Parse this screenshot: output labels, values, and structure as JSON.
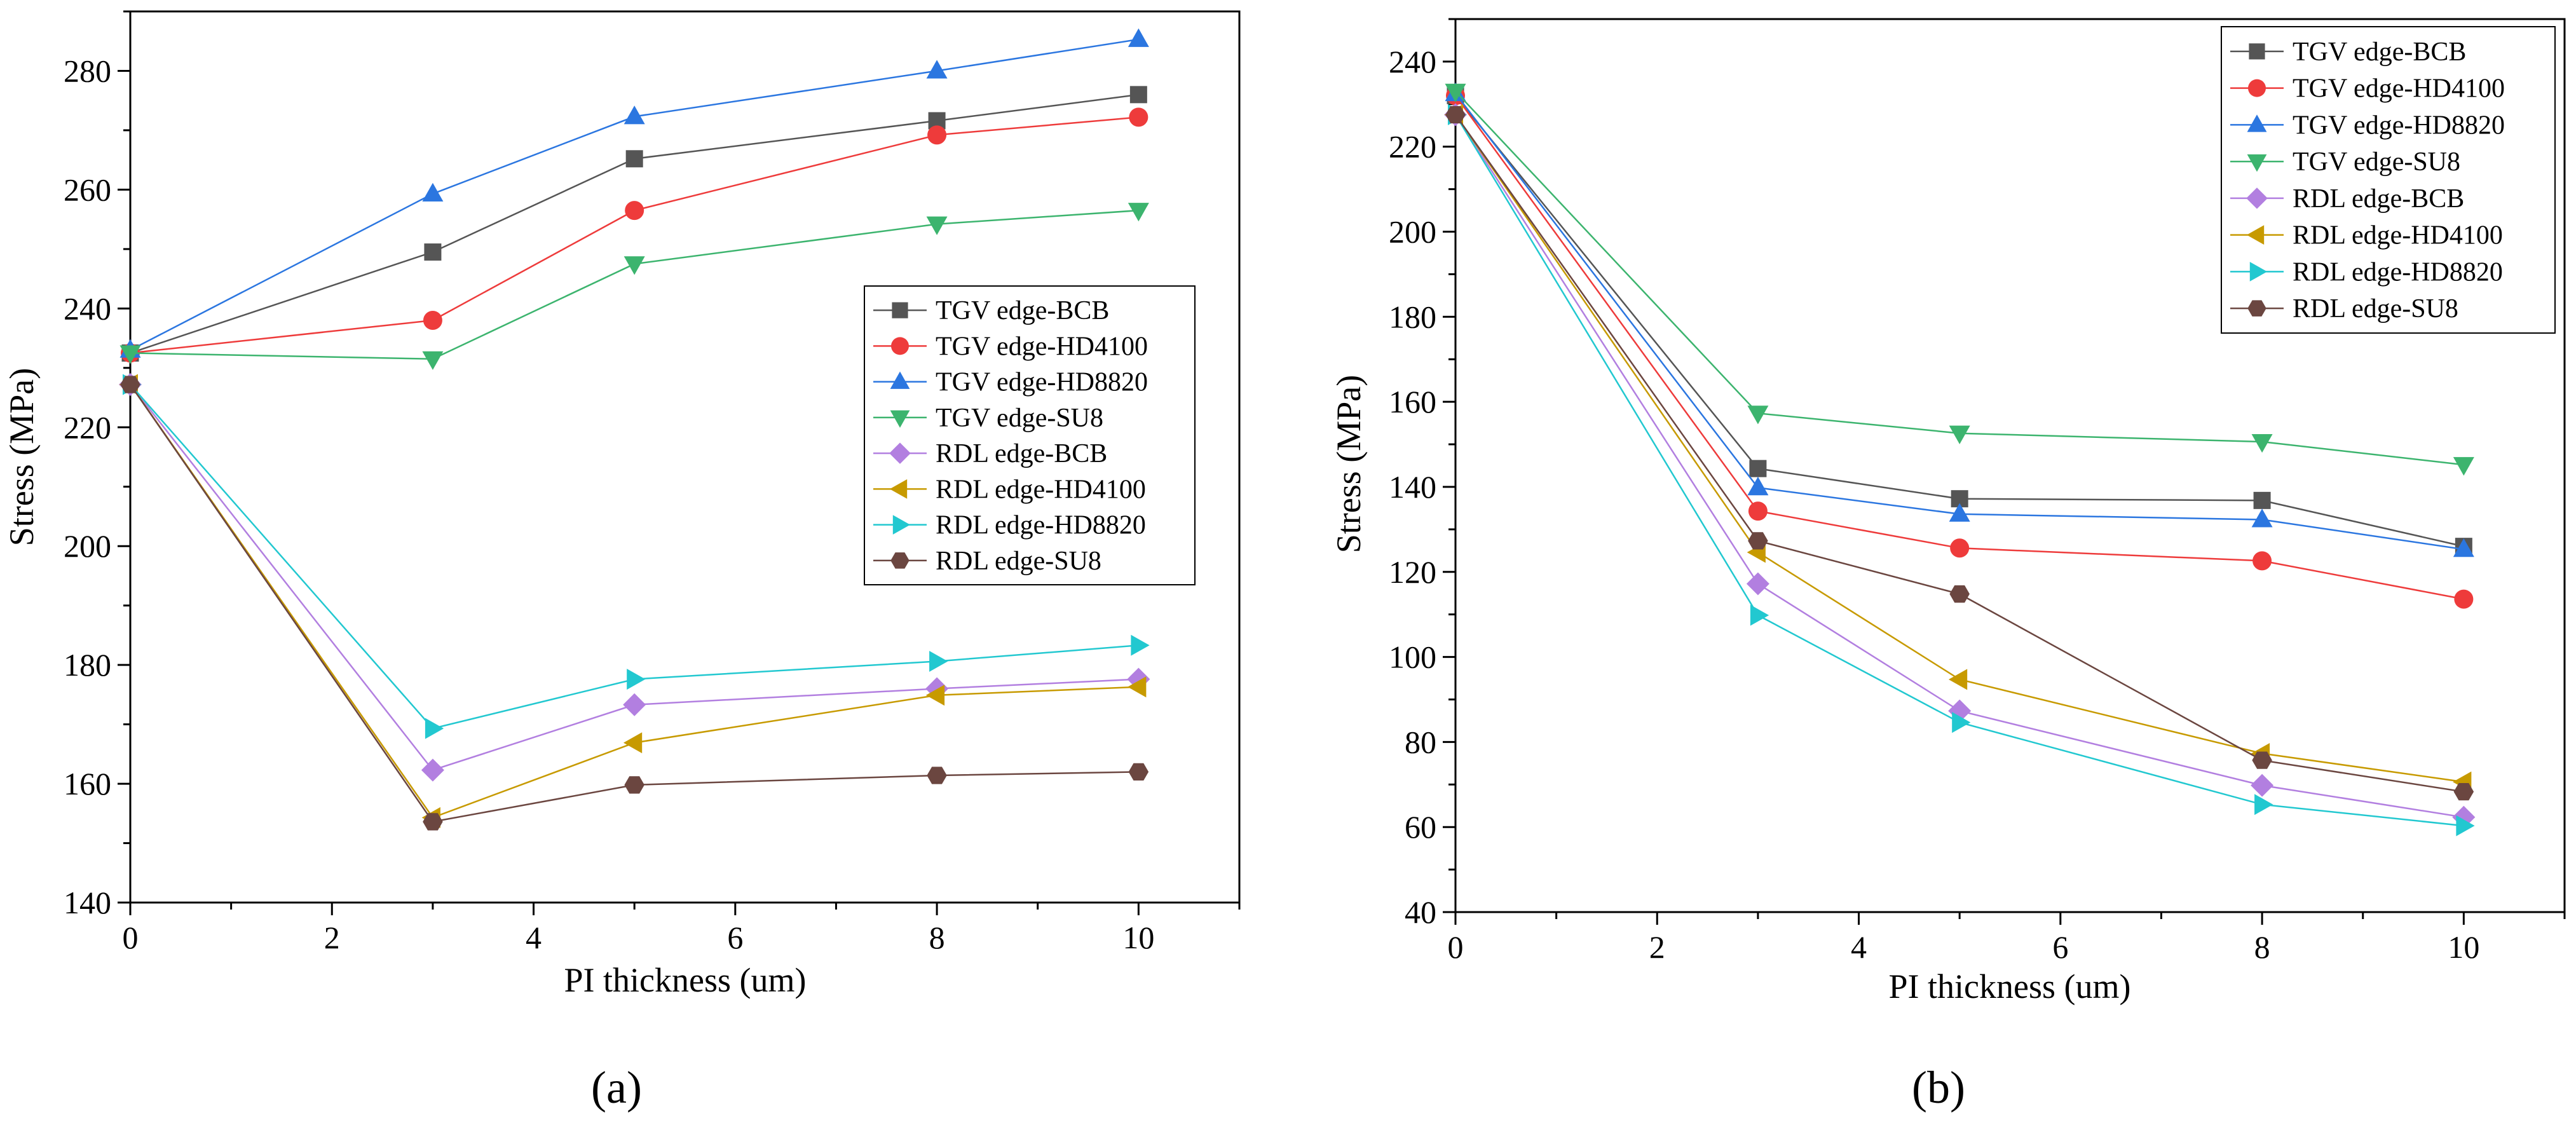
{
  "figure": {
    "captions": [
      "(a)",
      "(b)"
    ]
  },
  "styles": [
    {
      "name": "TGV edge-BCB",
      "color": "#555555",
      "marker": "square"
    },
    {
      "name": "TGV edge-HD4100",
      "color": "#ee3b3b",
      "marker": "circle"
    },
    {
      "name": "TGV edge-HD8820",
      "color": "#2b76e0",
      "marker": "triangle-up"
    },
    {
      "name": "TGV edge-SU8",
      "color": "#3cb46e",
      "marker": "triangle-down"
    },
    {
      "name": "RDL edge-BCB",
      "color": "#b27fe0",
      "marker": "diamond"
    },
    {
      "name": "RDL edge-HD4100",
      "color": "#c79a00",
      "marker": "triangle-left"
    },
    {
      "name": "RDL edge-HD8820",
      "color": "#22c8d0",
      "marker": "triangle-right"
    },
    {
      "name": "RDL edge-SU8",
      "color": "#6b4640",
      "marker": "hexagon"
    }
  ],
  "chart_data": [
    {
      "type": "line",
      "caption": "(a)",
      "xlabel": "PI thickness (um)",
      "ylabel": "Stress (MPa)",
      "xlim": [
        0,
        11
      ],
      "ylim": [
        140,
        290
      ],
      "xticks": [
        0,
        2,
        4,
        6,
        8,
        10
      ],
      "yticks": [
        140,
        160,
        180,
        200,
        220,
        240,
        260,
        280
      ],
      "legend_position": "center-right",
      "x": [
        0,
        3,
        5,
        8,
        10
      ],
      "series": [
        {
          "name": "TGV edge-BCB",
          "values": [
            232.5,
            249.5,
            265.2,
            271.6,
            276.0
          ]
        },
        {
          "name": "TGV edge-HD4100",
          "values": [
            232.5,
            238.0,
            256.5,
            269.2,
            272.2
          ]
        },
        {
          "name": "TGV edge-HD8820",
          "values": [
            233.0,
            259.3,
            272.3,
            280.0,
            285.3
          ]
        },
        {
          "name": "TGV edge-SU8",
          "values": [
            232.5,
            231.5,
            247.5,
            254.2,
            256.5
          ]
        },
        {
          "name": "RDL edge-BCB",
          "values": [
            227.2,
            162.3,
            173.3,
            176.0,
            177.6
          ]
        },
        {
          "name": "RDL edge-HD4100",
          "values": [
            227.2,
            154.3,
            166.9,
            174.9,
            176.3
          ]
        },
        {
          "name": "RDL edge-HD8820",
          "values": [
            227.2,
            169.3,
            177.6,
            180.6,
            183.3
          ]
        },
        {
          "name": "RDL edge-SU8",
          "values": [
            227.2,
            153.6,
            159.8,
            161.4,
            162.0
          ]
        }
      ]
    },
    {
      "type": "line",
      "caption": "(b)",
      "xlabel": "PI thickness (um)",
      "ylabel": "Stress (MPa)",
      "xlim": [
        0,
        11
      ],
      "ylim": [
        40,
        250
      ],
      "xticks": [
        0,
        2,
        4,
        6,
        8,
        10
      ],
      "yticks": [
        40,
        60,
        80,
        100,
        120,
        140,
        160,
        180,
        200,
        220,
        240
      ],
      "legend_position": "top-right",
      "x": [
        0,
        3,
        5,
        8,
        10
      ],
      "series": [
        {
          "name": "TGV edge-BCB",
          "values": [
            232.0,
            144.3,
            137.2,
            136.8,
            126.0
          ]
        },
        {
          "name": "TGV edge-HD4100",
          "values": [
            232.0,
            134.3,
            125.6,
            122.6,
            113.6
          ]
        },
        {
          "name": "TGV edge-HD8820",
          "values": [
            232.5,
            139.8,
            133.6,
            132.3,
            125.3
          ]
        },
        {
          "name": "TGV edge-SU8",
          "values": [
            233.0,
            157.3,
            152.6,
            150.6,
            145.2
          ]
        },
        {
          "name": "RDL edge-BCB",
          "values": [
            227.5,
            117.2,
            87.3,
            69.8,
            62.3
          ]
        },
        {
          "name": "RDL edge-HD4100",
          "values": [
            227.5,
            124.6,
            94.7,
            77.3,
            70.6
          ]
        },
        {
          "name": "RDL edge-HD8820",
          "values": [
            227.5,
            109.8,
            84.6,
            65.3,
            60.3
          ]
        },
        {
          "name": "RDL edge-SU8",
          "values": [
            227.5,
            127.3,
            114.8,
            75.7,
            68.3
          ]
        }
      ]
    }
  ]
}
